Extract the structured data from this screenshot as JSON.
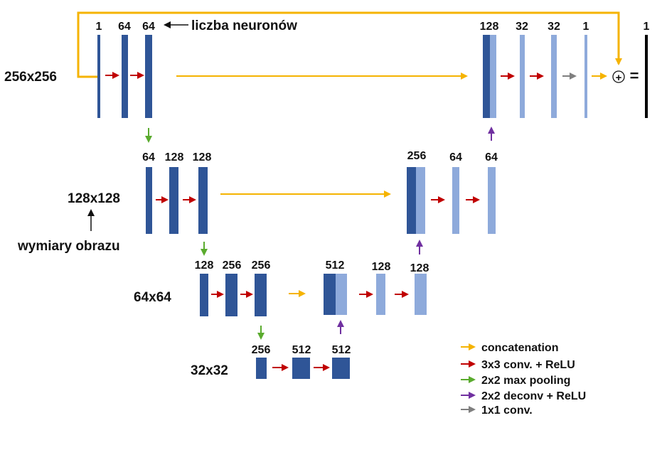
{
  "labels": {
    "neuron_note": "liczba neuronów",
    "image_dims_note": "wymiary obrazu",
    "equals": "=",
    "plus": "+"
  },
  "levels": {
    "l1": {
      "size": "256x256",
      "enc_channels": [
        "1",
        "64",
        "64"
      ],
      "dec_channels": [
        "128",
        "32",
        "32",
        "1"
      ],
      "output_channel": "1"
    },
    "l2": {
      "size": "128x128",
      "enc_channels": [
        "64",
        "128",
        "128"
      ],
      "dec_channels": [
        "256",
        "64",
        "64"
      ]
    },
    "l3": {
      "size": "64x64",
      "enc_channels": [
        "128",
        "256",
        "256"
      ],
      "dec_channels": [
        "512",
        "128",
        "128"
      ]
    },
    "l4": {
      "size": "32x32",
      "channels": [
        "256",
        "512",
        "512"
      ]
    }
  },
  "legend": [
    {
      "label": "concatenation",
      "color": "#f5b301"
    },
    {
      "label": "3x3 conv. + ReLU",
      "color": "#c00000"
    },
    {
      "label": "2x2 max pooling",
      "color": "#5aab2e"
    },
    {
      "label": "2x2 deconv + ReLU",
      "color": "#7030a0"
    },
    {
      "label": "1x1 conv.",
      "color": "#7f7f7f"
    }
  ],
  "colors": {
    "encoder_block": "#2f5597",
    "decoder_block": "#8eaadb",
    "concat": "#f5b301",
    "conv": "#c00000",
    "pool": "#5aab2e",
    "deconv": "#7030a0",
    "conv1x1": "#7f7f7f",
    "output": "#000000"
  }
}
